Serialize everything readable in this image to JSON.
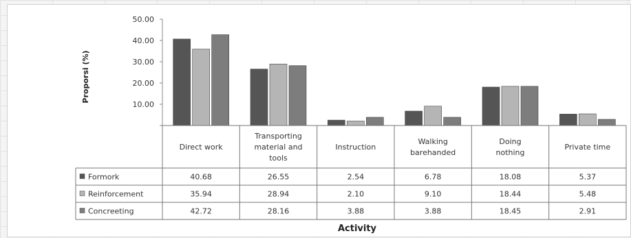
{
  "chart_data": {
    "type": "bar",
    "title": "",
    "xlabel": "Activity",
    "ylabel": "Proporsi (%)",
    "ylim": [
      0,
      50
    ],
    "yticks": [
      "",
      "10.00",
      "20.00",
      "30.00",
      "40.00",
      "50.00"
    ],
    "grid": false,
    "legend": "data-table-left",
    "categories": [
      [
        "Direct work"
      ],
      [
        "Transporting",
        "material and",
        "tools"
      ],
      [
        "Instruction"
      ],
      [
        "Walking",
        "barehanded"
      ],
      [
        "Doing",
        "nothing"
      ],
      [
        "Private time"
      ]
    ],
    "series": [
      {
        "name": "Formork",
        "color": "#555555",
        "values": [
          40.68,
          26.55,
          2.54,
          6.78,
          18.08,
          5.37
        ],
        "labels": [
          "40.68",
          "26.55",
          "2.54",
          "6.78",
          "18.08",
          "5.37"
        ]
      },
      {
        "name": "Reinforcement",
        "color": "#b5b5b5",
        "values": [
          35.94,
          28.94,
          2.1,
          9.1,
          18.44,
          5.48
        ],
        "labels": [
          "35.94",
          "28.94",
          "2.10",
          "9.10",
          "18.44",
          "5.48"
        ]
      },
      {
        "name": "Concreeting",
        "color": "#7d7d7d",
        "values": [
          42.72,
          28.16,
          3.88,
          3.88,
          18.45,
          2.91
        ],
        "labels": [
          "42.72",
          "28.16",
          "3.88",
          "3.88",
          "18.45",
          "2.91"
        ]
      }
    ]
  }
}
